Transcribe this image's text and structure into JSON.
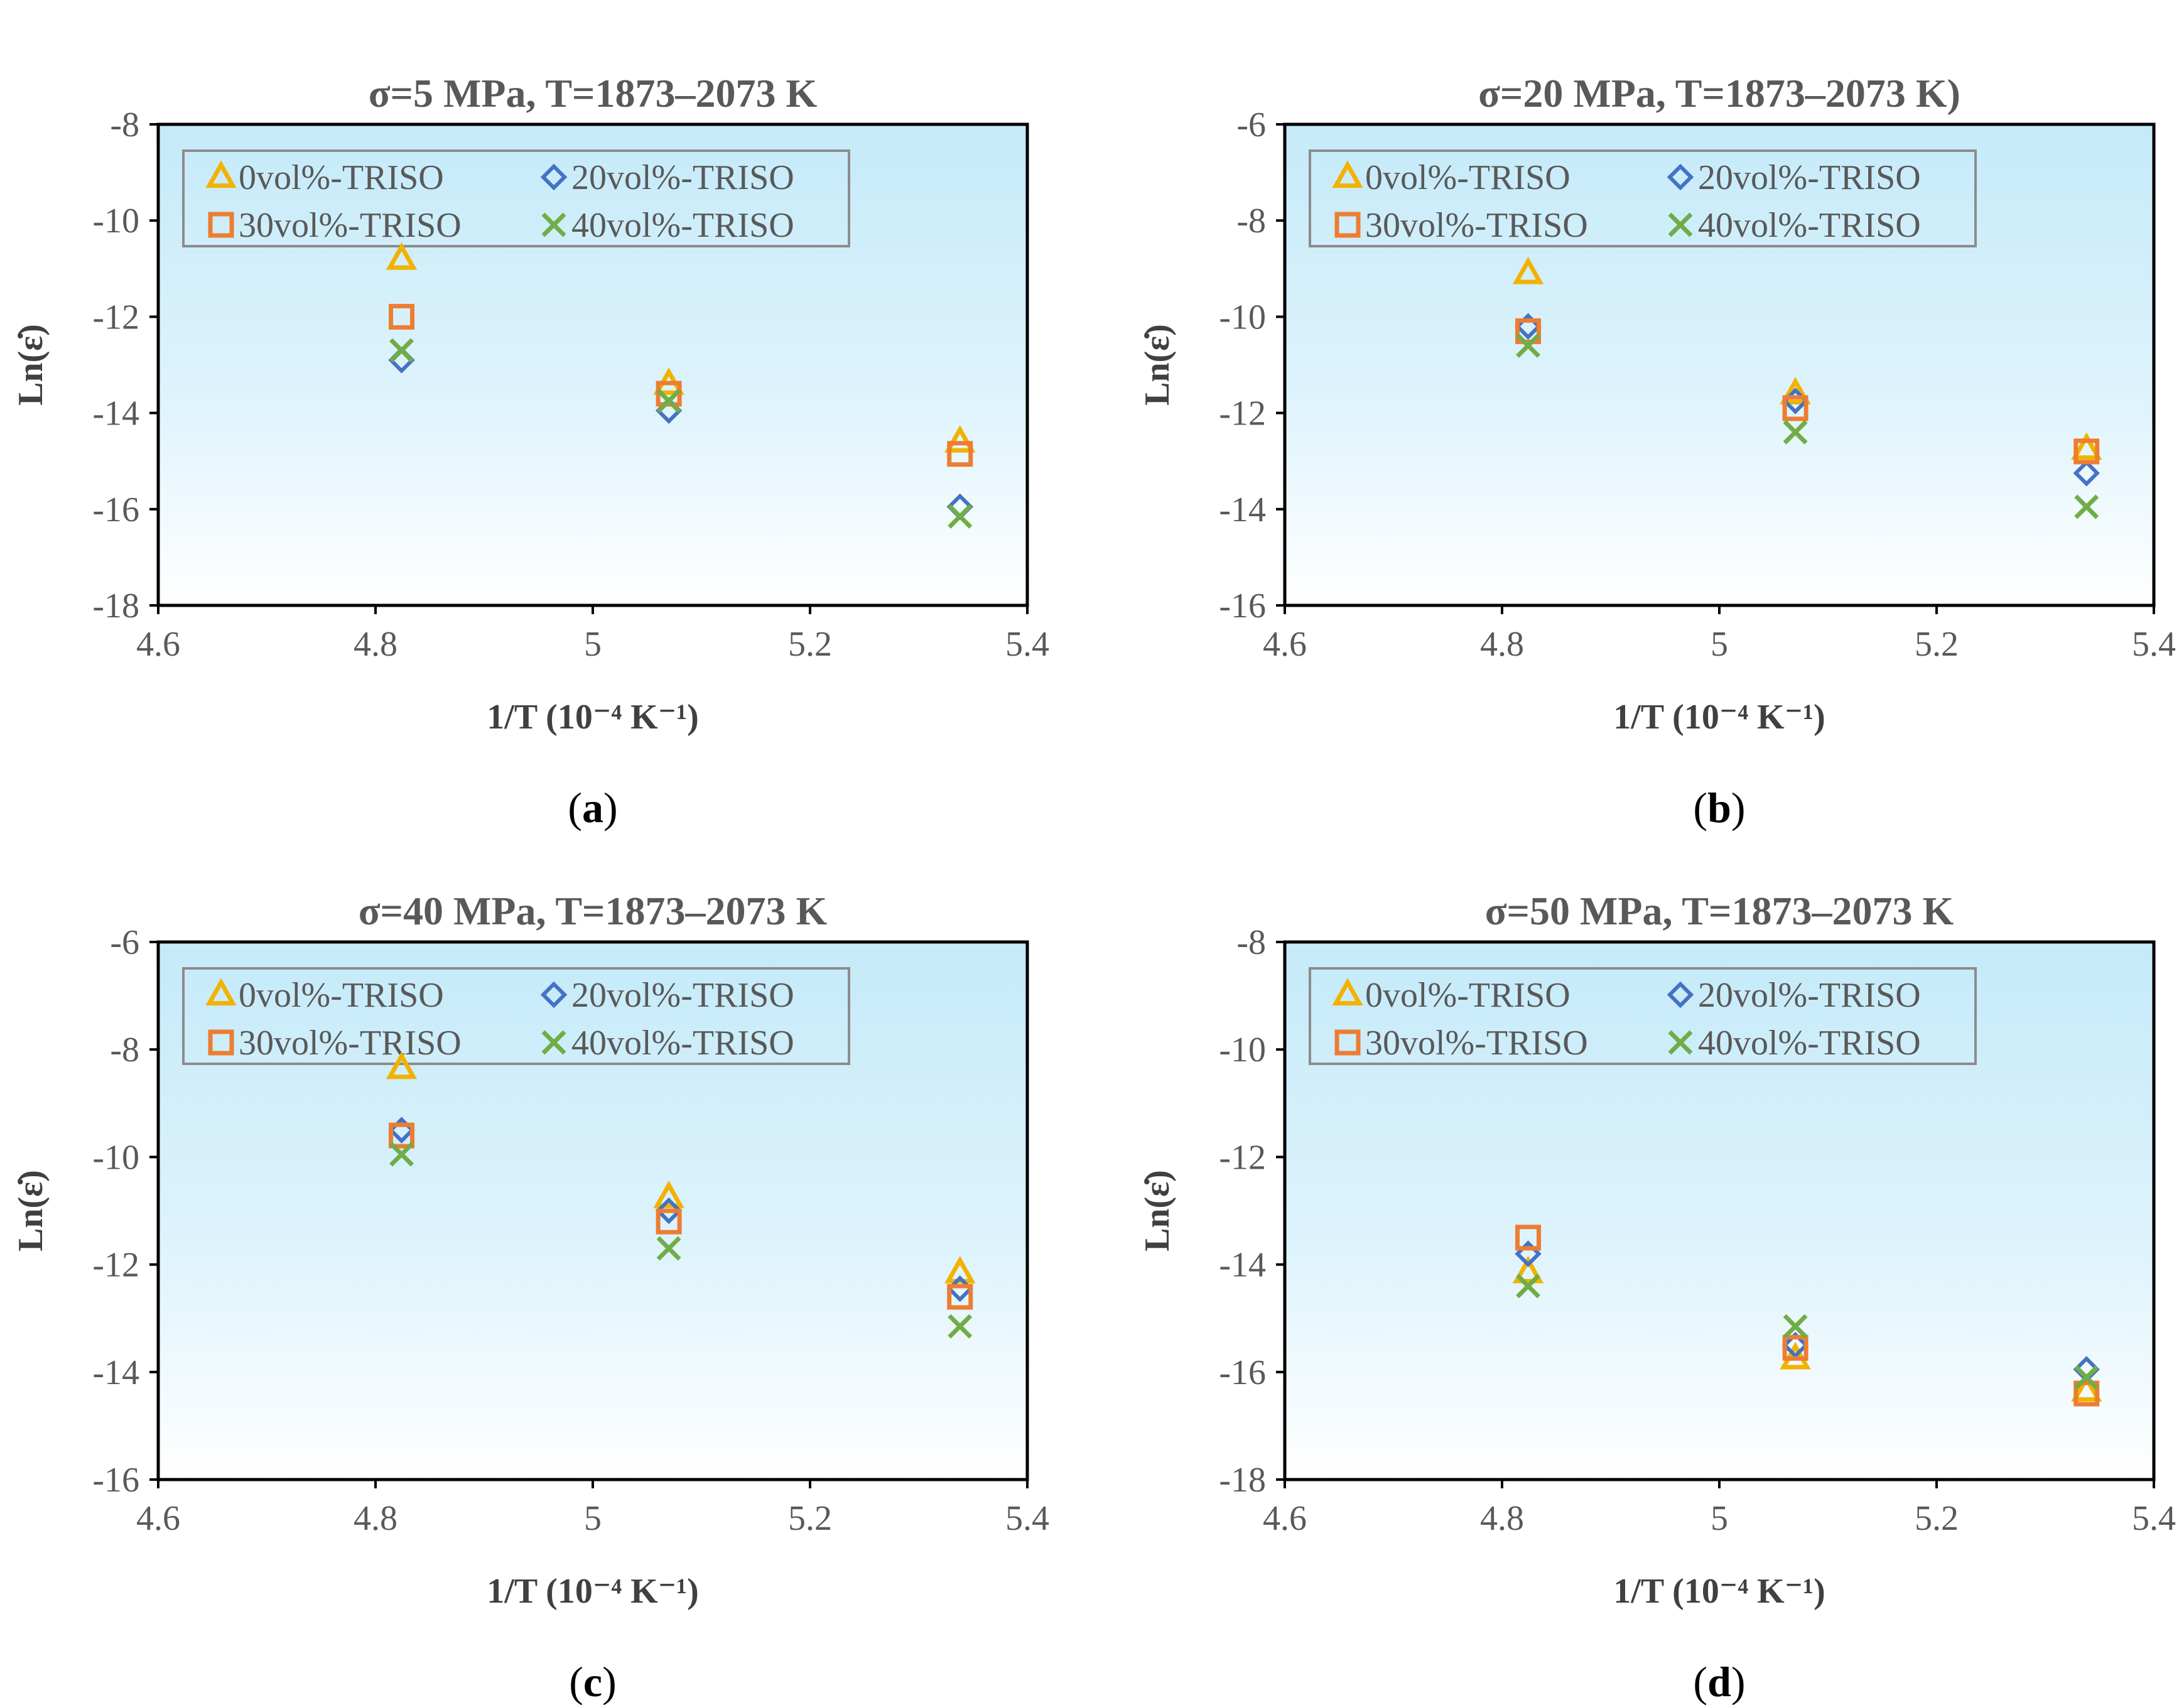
{
  "colors": {
    "0vol": "#F2B200",
    "20vol": "#4472C4",
    "30vol": "#ED7D31",
    "40vol": "#70AD47",
    "plot_bg_top": "#C5EAF9",
    "plot_bg_bottom": "#FFFFFF",
    "title": "#595959",
    "axis_label": "#404040"
  },
  "chart_data": [
    {
      "type": "scatter",
      "caption": "a",
      "title": "σ=5 MPa, T=1873–2073 K",
      "xlabel": "1/T (10⁻⁴ K⁻¹)",
      "ylabel": "Ln(ε̇)",
      "xlim": [
        4.6,
        5.4
      ],
      "ylim": [
        -18,
        -8
      ],
      "xticks": [
        4.6,
        4.8,
        5,
        5.2,
        5.4
      ],
      "yticks": [
        -18,
        -16,
        -14,
        -12,
        -10,
        -8
      ],
      "x": [
        4.824,
        5.07,
        5.338
      ],
      "legend": "top-left",
      "series": [
        {
          "name": "0vol%-TRISO",
          "marker": "triangle",
          "color_key": "0vol",
          "values": [
            -10.8,
            -13.4,
            -14.6
          ]
        },
        {
          "name": "20vol%-TRISO",
          "marker": "diamond",
          "color_key": "20vol",
          "values": [
            -12.9,
            -13.95,
            -15.95
          ]
        },
        {
          "name": "30vol%-TRISO",
          "marker": "square",
          "color_key": "30vol",
          "values": [
            -12.0,
            -13.6,
            -14.85
          ]
        },
        {
          "name": "40vol%-TRISO",
          "marker": "x",
          "color_key": "40vol",
          "values": [
            -12.7,
            -13.75,
            -16.15
          ]
        }
      ]
    },
    {
      "type": "scatter",
      "caption": "b",
      "title": "σ=20 MPa, T=1873–2073 K)",
      "xlabel": "1/T (10⁻⁴ K⁻¹)",
      "ylabel": "Ln(ε̇)",
      "xlim": [
        4.6,
        5.4
      ],
      "ylim": [
        -16,
        -6
      ],
      "xticks": [
        4.6,
        4.8,
        5,
        5.2,
        5.4
      ],
      "yticks": [
        -16,
        -14,
        -12,
        -10,
        -8,
        -6
      ],
      "x": [
        4.824,
        5.07,
        5.338
      ],
      "legend": "top-left",
      "series": [
        {
          "name": "0vol%-TRISO",
          "marker": "triangle",
          "color_key": "0vol",
          "values": [
            -9.1,
            -11.6,
            -12.75
          ]
        },
        {
          "name": "20vol%-TRISO",
          "marker": "diamond",
          "color_key": "20vol",
          "values": [
            -10.2,
            -11.75,
            -13.25
          ]
        },
        {
          "name": "30vol%-TRISO",
          "marker": "square",
          "color_key": "30vol",
          "values": [
            -10.3,
            -11.9,
            -12.8
          ]
        },
        {
          "name": "40vol%-TRISO",
          "marker": "x",
          "color_key": "40vol",
          "values": [
            -10.6,
            -12.4,
            -13.95
          ]
        }
      ]
    },
    {
      "type": "scatter",
      "caption": "c",
      "title": "σ=40 MPa, T=1873–2073 K",
      "xlabel": "1/T (10⁻⁴ K⁻¹)",
      "ylabel": "Ln(ε̇)",
      "xlim": [
        4.6,
        5.4
      ],
      "ylim": [
        -16,
        -6
      ],
      "xticks": [
        4.6,
        4.8,
        5,
        5.2,
        5.4
      ],
      "yticks": [
        -16,
        -14,
        -12,
        -10,
        -8,
        -6
      ],
      "x": [
        4.824,
        5.07,
        5.338
      ],
      "legend": "top-left",
      "series": [
        {
          "name": "0vol%-TRISO",
          "marker": "triangle",
          "color_key": "0vol",
          "values": [
            -8.35,
            -10.75,
            -12.15
          ]
        },
        {
          "name": "20vol%-TRISO",
          "marker": "diamond",
          "color_key": "20vol",
          "values": [
            -9.5,
            -11.0,
            -12.45
          ]
        },
        {
          "name": "30vol%-TRISO",
          "marker": "square",
          "color_key": "30vol",
          "values": [
            -9.6,
            -11.2,
            -12.6
          ]
        },
        {
          "name": "40vol%-TRISO",
          "marker": "x",
          "color_key": "40vol",
          "values": [
            -9.95,
            -11.7,
            -13.15
          ]
        }
      ]
    },
    {
      "type": "scatter",
      "caption": "d",
      "title": "σ=50 MPa, T=1873–2073 K",
      "xlabel": "1/T (10⁻⁴ K⁻¹)",
      "ylabel": "Ln(ε̇)",
      "xlim": [
        4.6,
        5.4
      ],
      "ylim": [
        -18,
        -8
      ],
      "xticks": [
        4.6,
        4.8,
        5,
        5.2,
        5.4
      ],
      "yticks": [
        -18,
        -16,
        -14,
        -12,
        -10,
        -8
      ],
      "x": [
        4.824,
        5.07,
        5.338
      ],
      "legend": "top-left",
      "series": [
        {
          "name": "0vol%-TRISO",
          "marker": "triangle",
          "color_key": "0vol",
          "values": [
            -14.15,
            -15.75,
            -16.35
          ]
        },
        {
          "name": "20vol%-TRISO",
          "marker": "diamond",
          "color_key": "20vol",
          "values": [
            -13.8,
            -15.5,
            -15.95
          ]
        },
        {
          "name": "30vol%-TRISO",
          "marker": "square",
          "color_key": "30vol",
          "values": [
            -13.5,
            -15.55,
            -16.4
          ]
        },
        {
          "name": "40vol%-TRISO",
          "marker": "x",
          "color_key": "40vol",
          "values": [
            -14.4,
            -15.15,
            -16.1
          ]
        }
      ]
    }
  ]
}
